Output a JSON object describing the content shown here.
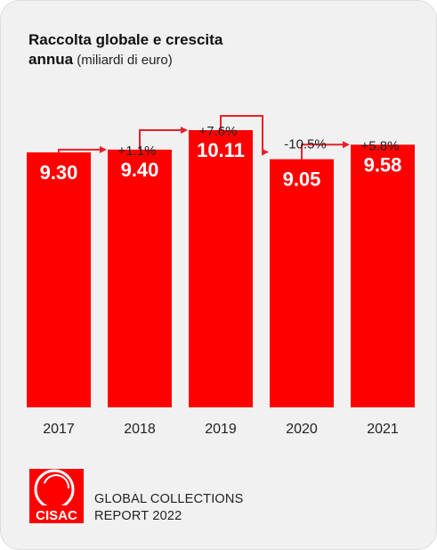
{
  "title": {
    "bold": "Raccolta globale e crescita",
    "bold2": "annua",
    "light": " (miliardi di euro)"
  },
  "colors": {
    "bar": "#ff0000",
    "arrow": "#e8202a",
    "background": "#f1f1f1"
  },
  "chart_data": {
    "type": "bar",
    "title": "Raccolta globale e crescita annua (miliardi di euro)",
    "categories": [
      "2017",
      "2018",
      "2019",
      "2020",
      "2021"
    ],
    "values": [
      9.3,
      9.4,
      10.11,
      9.05,
      9.58
    ],
    "value_labels": [
      "9.30",
      "9.40",
      "10.11",
      "9.05",
      "9.58"
    ],
    "growth": [
      "+1.1%",
      "+7.6%",
      "-10.5%",
      "+5.8%"
    ],
    "ylim": [
      0,
      10.11
    ],
    "grid": false,
    "legend": "none"
  },
  "logo": {
    "text": "CISAC",
    "icon": "cisac-logo"
  },
  "report": {
    "line1": "GLOBAL COLLECTIONS",
    "line2": "REPORT 2022"
  }
}
